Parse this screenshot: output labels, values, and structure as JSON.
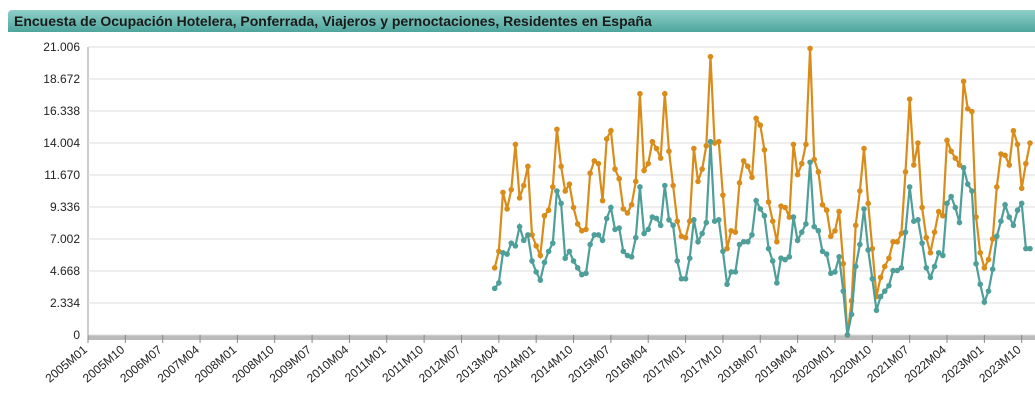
{
  "chart_data": {
    "type": "line",
    "title": "Encuesta de Ocupación Hotelera, Ponferrada, Viajeros y pernoctaciones, Residentes en España",
    "categories": [
      "2005M01",
      null,
      null,
      null,
      null,
      null,
      null,
      null,
      null,
      "2005M10",
      null,
      null,
      null,
      null,
      null,
      null,
      null,
      null,
      "2006M07",
      null,
      null,
      null,
      null,
      null,
      null,
      null,
      null,
      "2007M04",
      null,
      null,
      null,
      null,
      null,
      null,
      null,
      null,
      "2008M01",
      null,
      null,
      null,
      null,
      null,
      null,
      null,
      null,
      "2008M10",
      null,
      null,
      null,
      null,
      null,
      null,
      null,
      null,
      "2009M07",
      null,
      null,
      null,
      null,
      null,
      null,
      null,
      null,
      "2010M04",
      null,
      null,
      null,
      null,
      null,
      null,
      null,
      null,
      "2011M01",
      null,
      null,
      null,
      null,
      null,
      null,
      null,
      null,
      "2011M10",
      null,
      null,
      null,
      null,
      null,
      null,
      null,
      null,
      "2012M07",
      null,
      null,
      null,
      null,
      null,
      null,
      null,
      null,
      "2013M04",
      null,
      null,
      null,
      null,
      null,
      null,
      null,
      null,
      "2014M01",
      null,
      null,
      null,
      null,
      null,
      null,
      null,
      null,
      "2014M10",
      null,
      null,
      null,
      null,
      null,
      null,
      null,
      null,
      "2015M07",
      null,
      null,
      null,
      null,
      null,
      null,
      null,
      null,
      "2016M04",
      null,
      null,
      null,
      null,
      null,
      null,
      null,
      null,
      "2017M01",
      null,
      null,
      null,
      null,
      null,
      null,
      null,
      null,
      "2017M10",
      null,
      null,
      null,
      null,
      null,
      null,
      null,
      null,
      "2018M07",
      null,
      null,
      null,
      null,
      null,
      null,
      null,
      null,
      "2019M04",
      null,
      null,
      null,
      null,
      null,
      null,
      null,
      null,
      "2020M01",
      null,
      null,
      null,
      null,
      null,
      null,
      null,
      null,
      "2020M10",
      null,
      null,
      null,
      null,
      null,
      null,
      null,
      null,
      "2021M07",
      null,
      null,
      null,
      null,
      null,
      null,
      null,
      null,
      "2022M04",
      null,
      null,
      null,
      null,
      null,
      null,
      null,
      null,
      "2023M01",
      null,
      null,
      null,
      null,
      null,
      null,
      null,
      null,
      "2023M10",
      null,
      null
    ],
    "series": [
      {
        "color": "#d98c1a",
        "values": [
          null,
          null,
          null,
          null,
          null,
          null,
          null,
          null,
          null,
          null,
          null,
          null,
          null,
          null,
          null,
          null,
          null,
          null,
          null,
          null,
          null,
          null,
          null,
          null,
          null,
          null,
          null,
          null,
          null,
          null,
          null,
          null,
          null,
          null,
          null,
          null,
          null,
          null,
          null,
          null,
          null,
          null,
          null,
          null,
          null,
          null,
          null,
          null,
          null,
          null,
          null,
          null,
          null,
          null,
          null,
          null,
          null,
          null,
          null,
          null,
          null,
          null,
          null,
          null,
          null,
          null,
          null,
          null,
          null,
          null,
          null,
          null,
          null,
          null,
          null,
          null,
          null,
          null,
          null,
          null,
          null,
          null,
          null,
          null,
          null,
          null,
          null,
          null,
          null,
          null,
          null,
          null,
          null,
          null,
          null,
          null,
          null,
          null,
          4900,
          6100,
          10400,
          9200,
          10600,
          13900,
          10000,
          10900,
          12300,
          7300,
          6500,
          5800,
          8700,
          9100,
          10800,
          15000,
          12300,
          10500,
          11000,
          9300,
          8100,
          7600,
          7700,
          11800,
          12700,
          12500,
          9800,
          14300,
          14900,
          12100,
          11400,
          9200,
          8900,
          9500,
          11200,
          17600,
          12000,
          12500,
          14100,
          13600,
          12900,
          17600,
          13400,
          10900,
          8300,
          7200,
          7100,
          8300,
          13600,
          11200,
          12100,
          13800,
          20300,
          14000,
          14100,
          10200,
          6300,
          7600,
          7500,
          11100,
          12700,
          12300,
          11500,
          15800,
          15300,
          13500,
          9700,
          8300,
          6800,
          9400,
          9300,
          8600,
          13900,
          11700,
          12500,
          13900,
          20900,
          12800,
          11900,
          9500,
          9100,
          7200,
          7600,
          9000,
          5200,
          0,
          2500,
          8000,
          10500,
          13600,
          9600,
          6300,
          2800,
          4200,
          5000,
          5600,
          6800,
          6800,
          7400,
          11900,
          17200,
          12400,
          14000,
          9300,
          7100,
          6000,
          7500,
          9000,
          8700,
          14200,
          13400,
          12900,
          12400,
          18500,
          16500,
          16300,
          8600,
          6000,
          4900,
          5500,
          7000,
          10800,
          13200,
          13100,
          12400,
          14900,
          13900,
          10700,
          12500,
          14000
        ]
      },
      {
        "color": "#4e9e9a",
        "values": [
          null,
          null,
          null,
          null,
          null,
          null,
          null,
          null,
          null,
          null,
          null,
          null,
          null,
          null,
          null,
          null,
          null,
          null,
          null,
          null,
          null,
          null,
          null,
          null,
          null,
          null,
          null,
          null,
          null,
          null,
          null,
          null,
          null,
          null,
          null,
          null,
          null,
          null,
          null,
          null,
          null,
          null,
          null,
          null,
          null,
          null,
          null,
          null,
          null,
          null,
          null,
          null,
          null,
          null,
          null,
          null,
          null,
          null,
          null,
          null,
          null,
          null,
          null,
          null,
          null,
          null,
          null,
          null,
          null,
          null,
          null,
          null,
          null,
          null,
          null,
          null,
          null,
          null,
          null,
          null,
          null,
          null,
          null,
          null,
          null,
          null,
          null,
          null,
          null,
          null,
          null,
          null,
          null,
          null,
          null,
          null,
          null,
          null,
          3400,
          3800,
          6000,
          5900,
          6700,
          6500,
          7900,
          6900,
          7300,
          5400,
          4600,
          4000,
          5300,
          6100,
          6700,
          10500,
          9600,
          5600,
          6100,
          5400,
          4900,
          4400,
          4500,
          6600,
          7300,
          7300,
          6900,
          8500,
          9300,
          7700,
          7800,
          6100,
          5800,
          5700,
          7100,
          10800,
          7400,
          7700,
          8600,
          8500,
          8000,
          10900,
          8400,
          8000,
          5400,
          4100,
          4100,
          5600,
          8400,
          6800,
          7400,
          8200,
          14100,
          8300,
          8400,
          6100,
          3700,
          4600,
          4600,
          6600,
          6800,
          6800,
          7300,
          9800,
          9200,
          8700,
          6300,
          5400,
          3800,
          5600,
          5500,
          5700,
          8600,
          6900,
          7500,
          8100,
          12600,
          7900,
          7600,
          6100,
          5900,
          4500,
          4600,
          5700,
          3200,
          0,
          1500,
          5000,
          6600,
          9200,
          6200,
          4100,
          1800,
          2800,
          3200,
          3600,
          4700,
          4700,
          4900,
          7500,
          10800,
          8300,
          8400,
          6700,
          4900,
          4200,
          5000,
          6000,
          5800,
          9600,
          10100,
          9300,
          8200,
          12200,
          11000,
          10500,
          5200,
          3700,
          2400,
          3200,
          4800,
          7200,
          8300,
          9500,
          8600,
          8000,
          9100,
          9600,
          6300,
          6300
        ]
      }
    ],
    "ylim": [
      0,
      21006
    ],
    "yticks": [
      0,
      {
        "value": 2334,
        "label": "2.334"
      },
      {
        "value": 4668,
        "label": "4.668"
      },
      {
        "value": 7002,
        "label": "7.002"
      },
      {
        "value": 9336,
        "label": "9.336"
      },
      {
        "value": 11670,
        "label": "11.670"
      },
      {
        "value": 14004,
        "label": "14.004"
      },
      {
        "value": 16338,
        "label": "16.338"
      },
      {
        "value": 18672,
        "label": "18.672"
      },
      {
        "value": 21006,
        "label": "21.006"
      }
    ],
    "grid": true
  }
}
